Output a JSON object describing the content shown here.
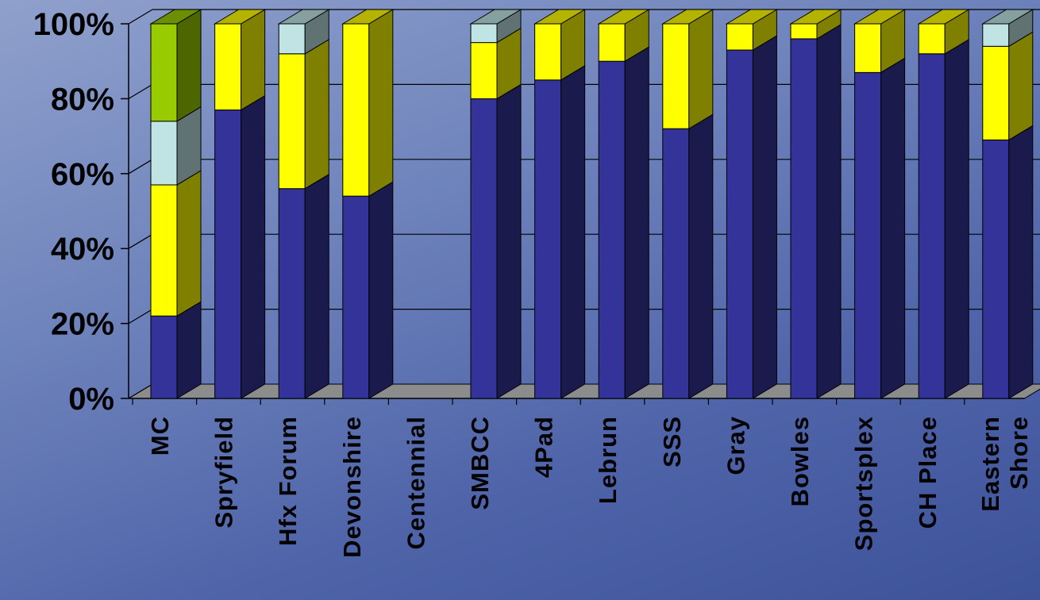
{
  "chart_data": {
    "type": "bar",
    "stacked": true,
    "normalized": true,
    "three_d": true,
    "categories": [
      [
        "MC"
      ],
      [
        "Spryfield"
      ],
      [
        "Hfx Forum"
      ],
      [
        "Devonshire"
      ],
      [
        "Centennial"
      ],
      [
        "SMBCC"
      ],
      [
        "4Pad"
      ],
      [
        "Lebrun"
      ],
      [
        "SSS"
      ],
      [
        "Gray"
      ],
      [
        "Bowles"
      ],
      [
        "Sportsplex"
      ],
      [
        "CH Place"
      ],
      [
        "Eastern",
        "Shore"
      ]
    ],
    "series": [
      {
        "color": "#333399",
        "values": [
          22,
          77,
          56,
          54,
          0,
          80,
          85,
          90,
          72,
          93,
          96,
          87,
          92,
          69
        ]
      },
      {
        "color": "#ffff00",
        "values": [
          35,
          23,
          36,
          46,
          0,
          15,
          15,
          10,
          28,
          7,
          4,
          13,
          8,
          25
        ]
      },
      {
        "color": "#c0e4e4",
        "values": [
          17,
          0,
          8,
          0,
          0,
          5,
          0,
          0,
          0,
          0,
          0,
          0,
          0,
          6
        ]
      },
      {
        "color": "#99cc00",
        "values": [
          26,
          0,
          0,
          0,
          0,
          0,
          0,
          0,
          0,
          0,
          0,
          0,
          0,
          0
        ]
      }
    ],
    "y_ticks": [
      "0%",
      "20%",
      "40%",
      "60%",
      "80%",
      "100%"
    ],
    "ylim": [
      0,
      100
    ],
    "grid": true,
    "legend": "none",
    "colors": {
      "floor": "#8c8c8c",
      "wall": "#8fa0cc",
      "gridline": "#000000"
    }
  }
}
